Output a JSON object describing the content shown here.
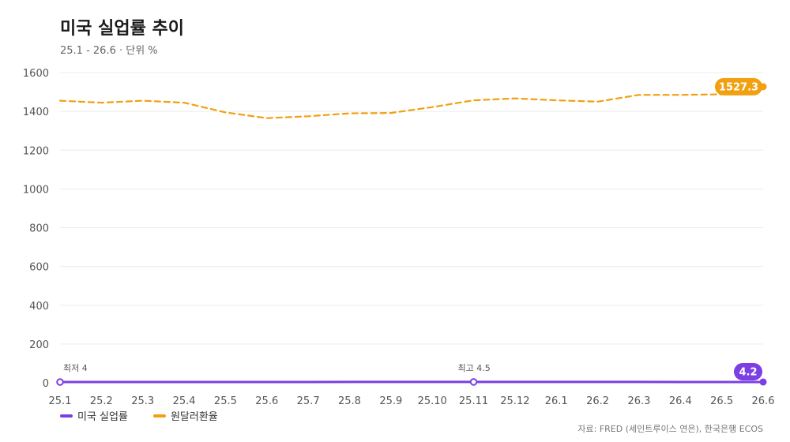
{
  "chart_data": {
    "type": "line",
    "title": "미국 실업률 추이",
    "subtitle": "25.1 - 26.6 · 단위 %",
    "categories": [
      "25.1",
      "25.2",
      "25.3",
      "25.4",
      "25.5",
      "25.6",
      "25.7",
      "25.8",
      "25.9",
      "25.10",
      "25.11",
      "25.12",
      "26.1",
      "26.2",
      "26.3",
      "26.4",
      "26.5",
      "26.6"
    ],
    "yticks": [
      "0",
      "200",
      "400",
      "600",
      "800",
      "1000",
      "1200",
      "1400",
      "1600"
    ],
    "ylim": [
      0,
      1600
    ],
    "grid": true,
    "legend_position": "bottom-left",
    "series": [
      {
        "name": "미국 실업률",
        "color": "#7b3fe4",
        "style": "solid",
        "values": [
          4.0,
          4.1,
          4.2,
          4.2,
          4.2,
          4.1,
          4.2,
          4.3,
          4.4,
          4.4,
          4.5,
          4.4,
          4.4,
          4.3,
          4.3,
          4.2,
          4.2,
          4.2
        ],
        "end_label": "4.2"
      },
      {
        "name": "원달러환율",
        "color": "#f0a010",
        "style": "dashed",
        "values": [
          1455,
          1445,
          1455,
          1445,
          1395,
          1365,
          1375,
          1390,
          1392,
          1422,
          1457,
          1467,
          1457,
          1450,
          1485,
          1485,
          1488,
          1527.3
        ],
        "end_label": "1527.3"
      }
    ],
    "annotations": [
      {
        "text": "최저 4",
        "category": "25.1"
      },
      {
        "text": "최고 4.5",
        "category": "25.11"
      }
    ],
    "source": "자료: FRED (세인트루이스 연은), 한국은행 ECOS"
  }
}
